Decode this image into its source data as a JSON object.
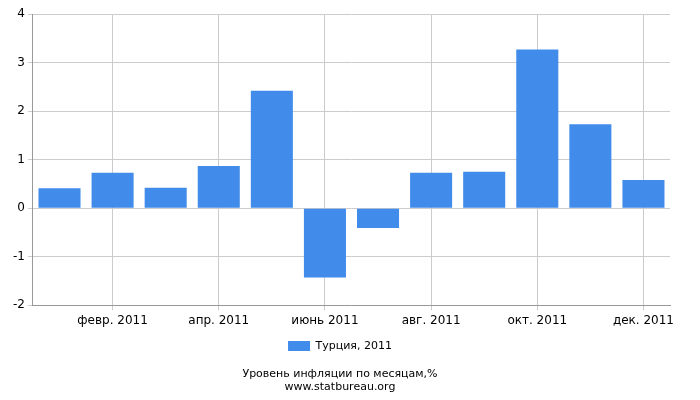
{
  "chart_data": {
    "type": "bar",
    "title": "Уровень инфляции по месяцам,%",
    "subtitle": "www.statbureau.org",
    "categories": [
      null,
      "февр. 2011",
      null,
      "апр. 2011",
      null,
      "июнь 2011",
      null,
      "авг. 2011",
      null,
      "окт. 2011",
      null,
      "дек. 2011"
    ],
    "series": [
      {
        "name": "Турция, 2011",
        "color": "#418ceb",
        "values": [
          0.41,
          0.73,
          0.42,
          0.87,
          2.42,
          -1.43,
          -0.41,
          0.73,
          0.75,
          3.27,
          1.73,
          0.58
        ]
      }
    ],
    "ylim": [
      -2,
      4
    ],
    "yticks": [
      -2,
      -1,
      0,
      1,
      2,
      3,
      4
    ],
    "grid": true,
    "legend": "bottom"
  }
}
